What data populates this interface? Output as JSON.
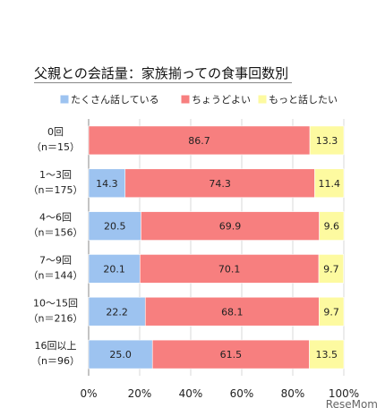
{
  "chart_data": {
    "type": "bar",
    "orientation": "horizontal",
    "stacked": true,
    "title": "父親との会話量：家族揃っての食事回数別",
    "categories": [
      "0回",
      "1～3回",
      "4～6回",
      "7～9回",
      "10～15回",
      "16回以上"
    ],
    "sample_sizes": [
      "（n＝15）",
      "（n＝175）",
      "（n＝156）",
      "（n＝144）",
      "（n＝216）",
      "（n＝96）"
    ],
    "series": [
      {
        "name": "たくさん話している",
        "color": "#9dc3f0",
        "values": [
          0,
          14.3,
          20.5,
          20.1,
          22.2,
          25.0
        ]
      },
      {
        "name": "ちょうどよい",
        "color": "#f77f7f",
        "values": [
          86.7,
          74.3,
          69.9,
          70.1,
          68.1,
          61.5
        ]
      },
      {
        "name": "もっと話したい",
        "color": "#fdfaa0",
        "values": [
          13.3,
          11.4,
          9.6,
          9.7,
          9.7,
          13.5
        ]
      }
    ],
    "xlim": [
      0,
      100
    ],
    "xticks": [
      "0%",
      "20%",
      "40%",
      "60%",
      "80%",
      "100%"
    ],
    "legend_position": "top",
    "grid": true
  },
  "watermark": "ReseMom"
}
